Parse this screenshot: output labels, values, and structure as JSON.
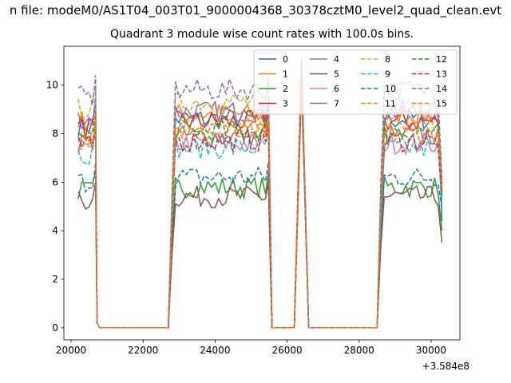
{
  "figure": {
    "suptitle": "n file: modeM0/AS1T04_003T01_9000004368_30378cztM0_level2_quad_clean.evt",
    "title": "Quadrant 3 module wise count rates with 100.0s bins.",
    "x_offset_label": "+3.584e8"
  },
  "chart_data": {
    "type": "line",
    "title": "Quadrant 3 module wise count rates with 100.0s bins.",
    "xlabel": "",
    "ylabel": "",
    "x_offset": 358400000,
    "xlim": [
      19800,
      30800
    ],
    "ylim": [
      -0.5,
      11.6
    ],
    "xticks": [
      20000,
      22000,
      24000,
      26000,
      28000,
      30000
    ],
    "yticks": [
      0,
      2,
      4,
      6,
      8,
      10
    ],
    "grid": false,
    "legend": {
      "placement": "top-right",
      "columns": 4
    },
    "segments": [
      {
        "from": 20200,
        "to": 20650,
        "kind": "flat"
      },
      {
        "from": 20650,
        "to": 20700,
        "kind": "spike"
      },
      {
        "from": 20700,
        "to": 20750,
        "kind": "drop"
      },
      {
        "from": 20800,
        "to": 22750,
        "kind": "zero"
      },
      {
        "from": 22750,
        "to": 22900,
        "kind": "rise"
      },
      {
        "from": 22900,
        "to": 25400,
        "kind": "flat"
      },
      {
        "from": 25600,
        "to": 26200,
        "kind": "zero"
      },
      {
        "from": 26400,
        "to": 26400,
        "kind": "spike"
      },
      {
        "from": 26600,
        "to": 28550,
        "kind": "zero"
      },
      {
        "from": 28550,
        "to": 28700,
        "kind": "rise"
      },
      {
        "from": 28700,
        "to": 30200,
        "kind": "flat"
      },
      {
        "from": 30200,
        "to": 30300,
        "kind": "drop"
      }
    ],
    "series": [
      {
        "name": "0",
        "color": "#1f77b4",
        "dash": "solid",
        "level": 8.6,
        "spike": 11.0,
        "end": 4.4
      },
      {
        "name": "1",
        "color": "#ff7f0e",
        "dash": "solid",
        "level": 8.8,
        "spike": 10.8,
        "end": 5.5
      },
      {
        "name": "2",
        "color": "#2ca02c",
        "dash": "solid",
        "level": 5.8,
        "spike": 10.2,
        "end": 4.0
      },
      {
        "name": "3",
        "color": "#d62728",
        "dash": "solid",
        "level": 8.5,
        "spike": 10.9,
        "end": 5.8
      },
      {
        "name": "4",
        "color": "#9467bd",
        "dash": "solid",
        "level": 8.9,
        "spike": 11.1,
        "end": 5.9
      },
      {
        "name": "5",
        "color": "#8c564b",
        "dash": "solid",
        "level": 5.4,
        "spike": 10.0,
        "end": 3.5
      },
      {
        "name": "6",
        "color": "#e377c2",
        "dash": "solid",
        "level": 7.6,
        "spike": 10.5,
        "end": 5.3
      },
      {
        "name": "7",
        "color": "#7f7f7f",
        "dash": "solid",
        "level": 7.9,
        "spike": 10.6,
        "end": 5.1
      },
      {
        "name": "8",
        "color": "#bcbd22",
        "dash": "dashed",
        "level": 9.3,
        "spike": 10.9,
        "end": 6.2
      },
      {
        "name": "9",
        "color": "#17becf",
        "dash": "dashed",
        "level": 7.4,
        "spike": 10.4,
        "end": 5.0
      },
      {
        "name": "10",
        "color": "#1f77b4",
        "dash": "dashed",
        "level": 6.2,
        "spike": 10.1,
        "end": 4.9
      },
      {
        "name": "11",
        "color": "#ff7f0e",
        "dash": "dashed",
        "level": 8.3,
        "spike": 10.7,
        "end": 6.0
      },
      {
        "name": "12",
        "color": "#2ca02c",
        "dash": "dashed",
        "level": 8.1,
        "spike": 10.6,
        "end": 5.4
      },
      {
        "name": "13",
        "color": "#d62728",
        "dash": "dashed",
        "level": 7.7,
        "spike": 10.5,
        "end": 5.6
      },
      {
        "name": "14",
        "color": "#9467bd",
        "dash": "dashed",
        "level": 9.8,
        "spike": 11.1,
        "end": 6.1
      },
      {
        "name": "15",
        "color": "#ff7f0e",
        "dash": "dashed",
        "level": 8.0,
        "spike": 10.6,
        "end": 5.7
      }
    ]
  }
}
